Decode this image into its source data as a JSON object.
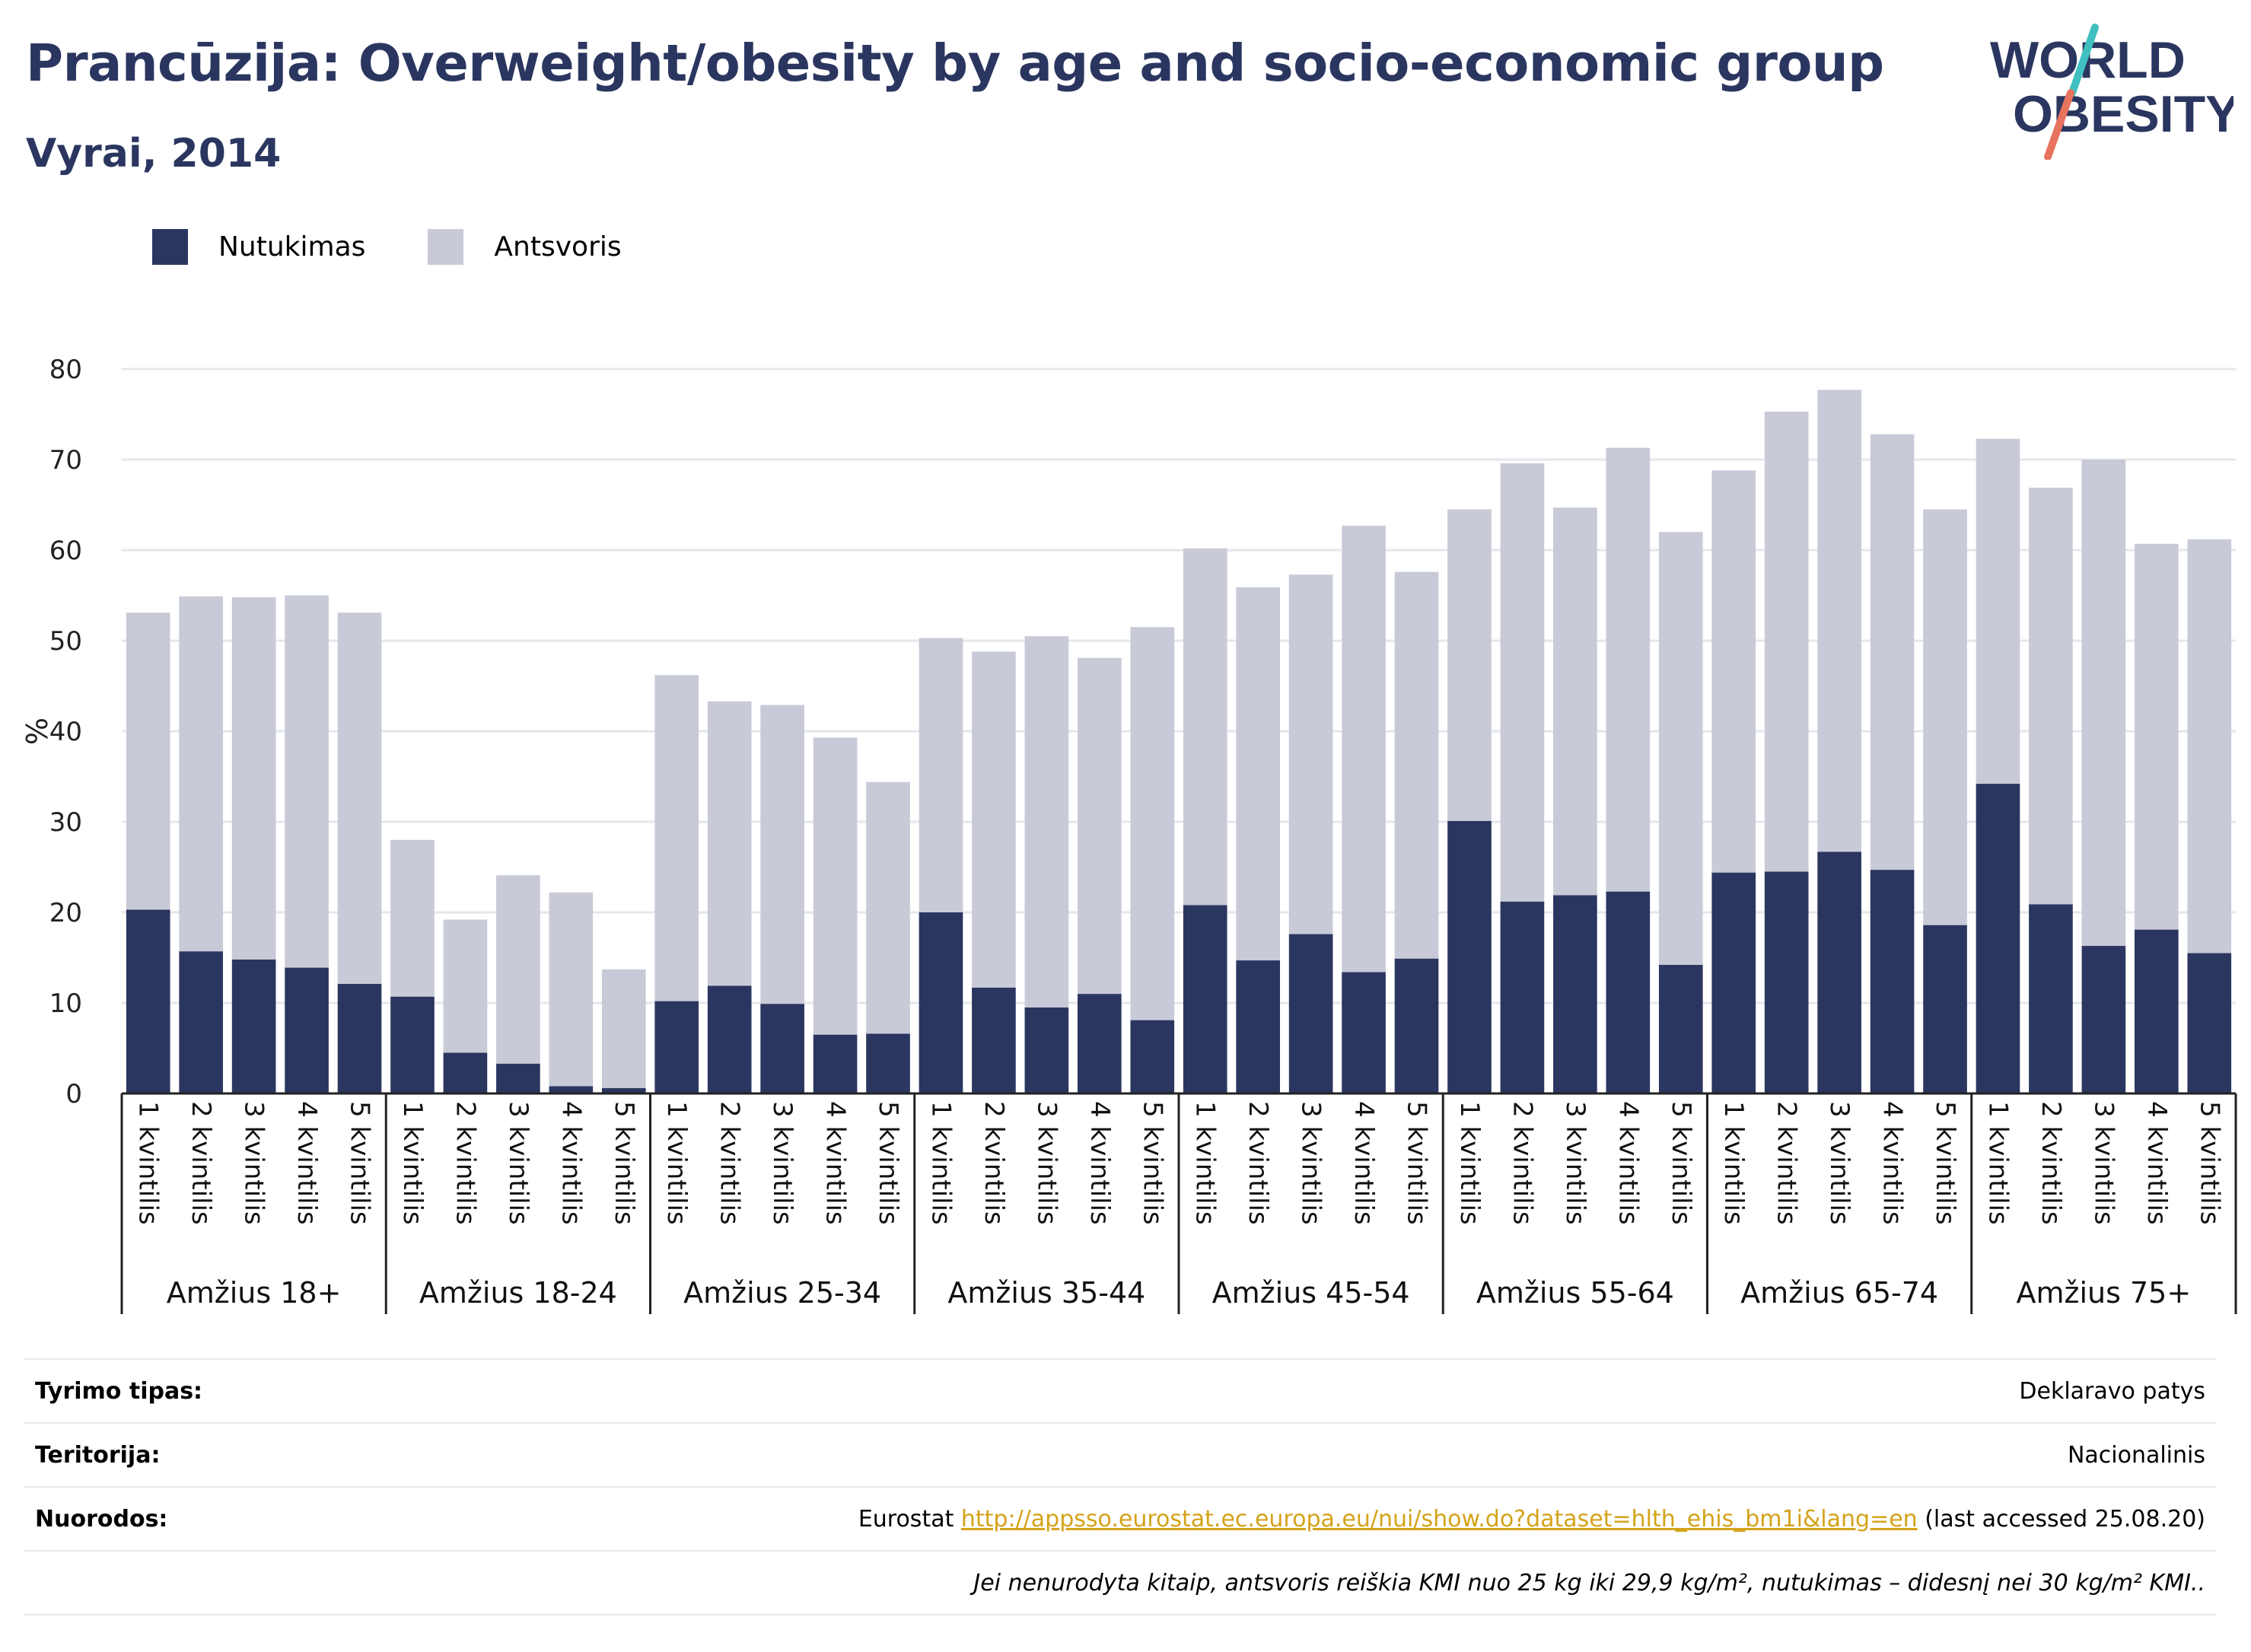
{
  "header": {
    "title": "Prancūzija: Overweight/obesity by age and socio-economic group",
    "subtitle": "Vyrai, 2014",
    "logo_text_line1": "WORLD",
    "logo_text_line2": "OBESITY"
  },
  "colors": {
    "obesity": "#2b3660",
    "overweight": "#c9cad8",
    "title": "#2b3660",
    "logo_teal": "#3fbfbf",
    "logo_coral": "#e8735f",
    "link": "#d4a31a"
  },
  "legend": {
    "obesity_label": "Nutukimas",
    "overweight_label": "Antsvoris"
  },
  "chart_data": {
    "type": "bar",
    "stacked": true,
    "ylabel": "%",
    "ylim": [
      0,
      80
    ],
    "yticks": [
      0,
      10,
      20,
      30,
      40,
      50,
      60,
      70,
      80
    ],
    "grid": true,
    "legend_position": "top-left",
    "groups": [
      "Amžius 18+",
      "Amžius 18-24",
      "Amžius 25-34",
      "Amžius 35-44",
      "Amžius 45-54",
      "Amžius 55-64",
      "Amžius 65-74",
      "Amžius 75+"
    ],
    "categories": [
      "1 kvintilis",
      "2 kvintilis",
      "3 kvintilis",
      "4 kvintilis",
      "5 kvintilis"
    ],
    "series": [
      {
        "name": "Nutukimas",
        "values": [
          [
            20.3,
            15.7,
            14.8,
            13.9,
            12.1
          ],
          [
            10.7,
            4.5,
            3.3,
            0.8,
            0.6
          ],
          [
            10.2,
            11.9,
            9.9,
            6.5,
            6.6
          ],
          [
            20.0,
            11.7,
            9.5,
            11.0,
            8.1
          ],
          [
            20.8,
            14.7,
            17.6,
            13.4,
            14.9
          ],
          [
            30.1,
            21.2,
            21.9,
            22.3,
            14.2
          ],
          [
            24.4,
            24.5,
            26.7,
            24.7,
            18.6
          ],
          [
            34.2,
            20.9,
            16.3,
            18.1,
            15.5
          ]
        ]
      },
      {
        "name": "Antsvoris",
        "values": [
          [
            32.8,
            39.2,
            40.0,
            41.1,
            41.0
          ],
          [
            17.3,
            14.7,
            20.8,
            21.4,
            13.1
          ],
          [
            36.0,
            31.4,
            33.0,
            32.8,
            27.8
          ],
          [
            30.3,
            37.1,
            41.0,
            37.1,
            43.4
          ],
          [
            39.4,
            41.2,
            39.7,
            49.3,
            42.7
          ],
          [
            34.4,
            48.4,
            42.8,
            49.0,
            47.8
          ],
          [
            44.4,
            50.8,
            51.0,
            48.1,
            45.9
          ],
          [
            38.1,
            46.0,
            53.7,
            42.6,
            45.7
          ]
        ]
      }
    ]
  },
  "info": {
    "rows": [
      {
        "label": "Tyrimo tipas:",
        "value": "Deklaravo patys"
      },
      {
        "label": "Teritorija:",
        "value": "Nacionalinis"
      }
    ],
    "references": {
      "label": "Nuorodos:",
      "prefix": "Eurostat ",
      "url": "http://appsso.eurostat.ec.europa.eu/nui/show.do?dataset=hlth_ehis_bm1i&lang=en",
      "suffix": " (last accessed 25.08.20)"
    },
    "note": "Jei nenurodyta kitaip, antsvoris reiškia KMI nuo 25 kg iki 29,9 kg/m², nutukimas – didesnį nei 30 kg/m² KMI.."
  }
}
